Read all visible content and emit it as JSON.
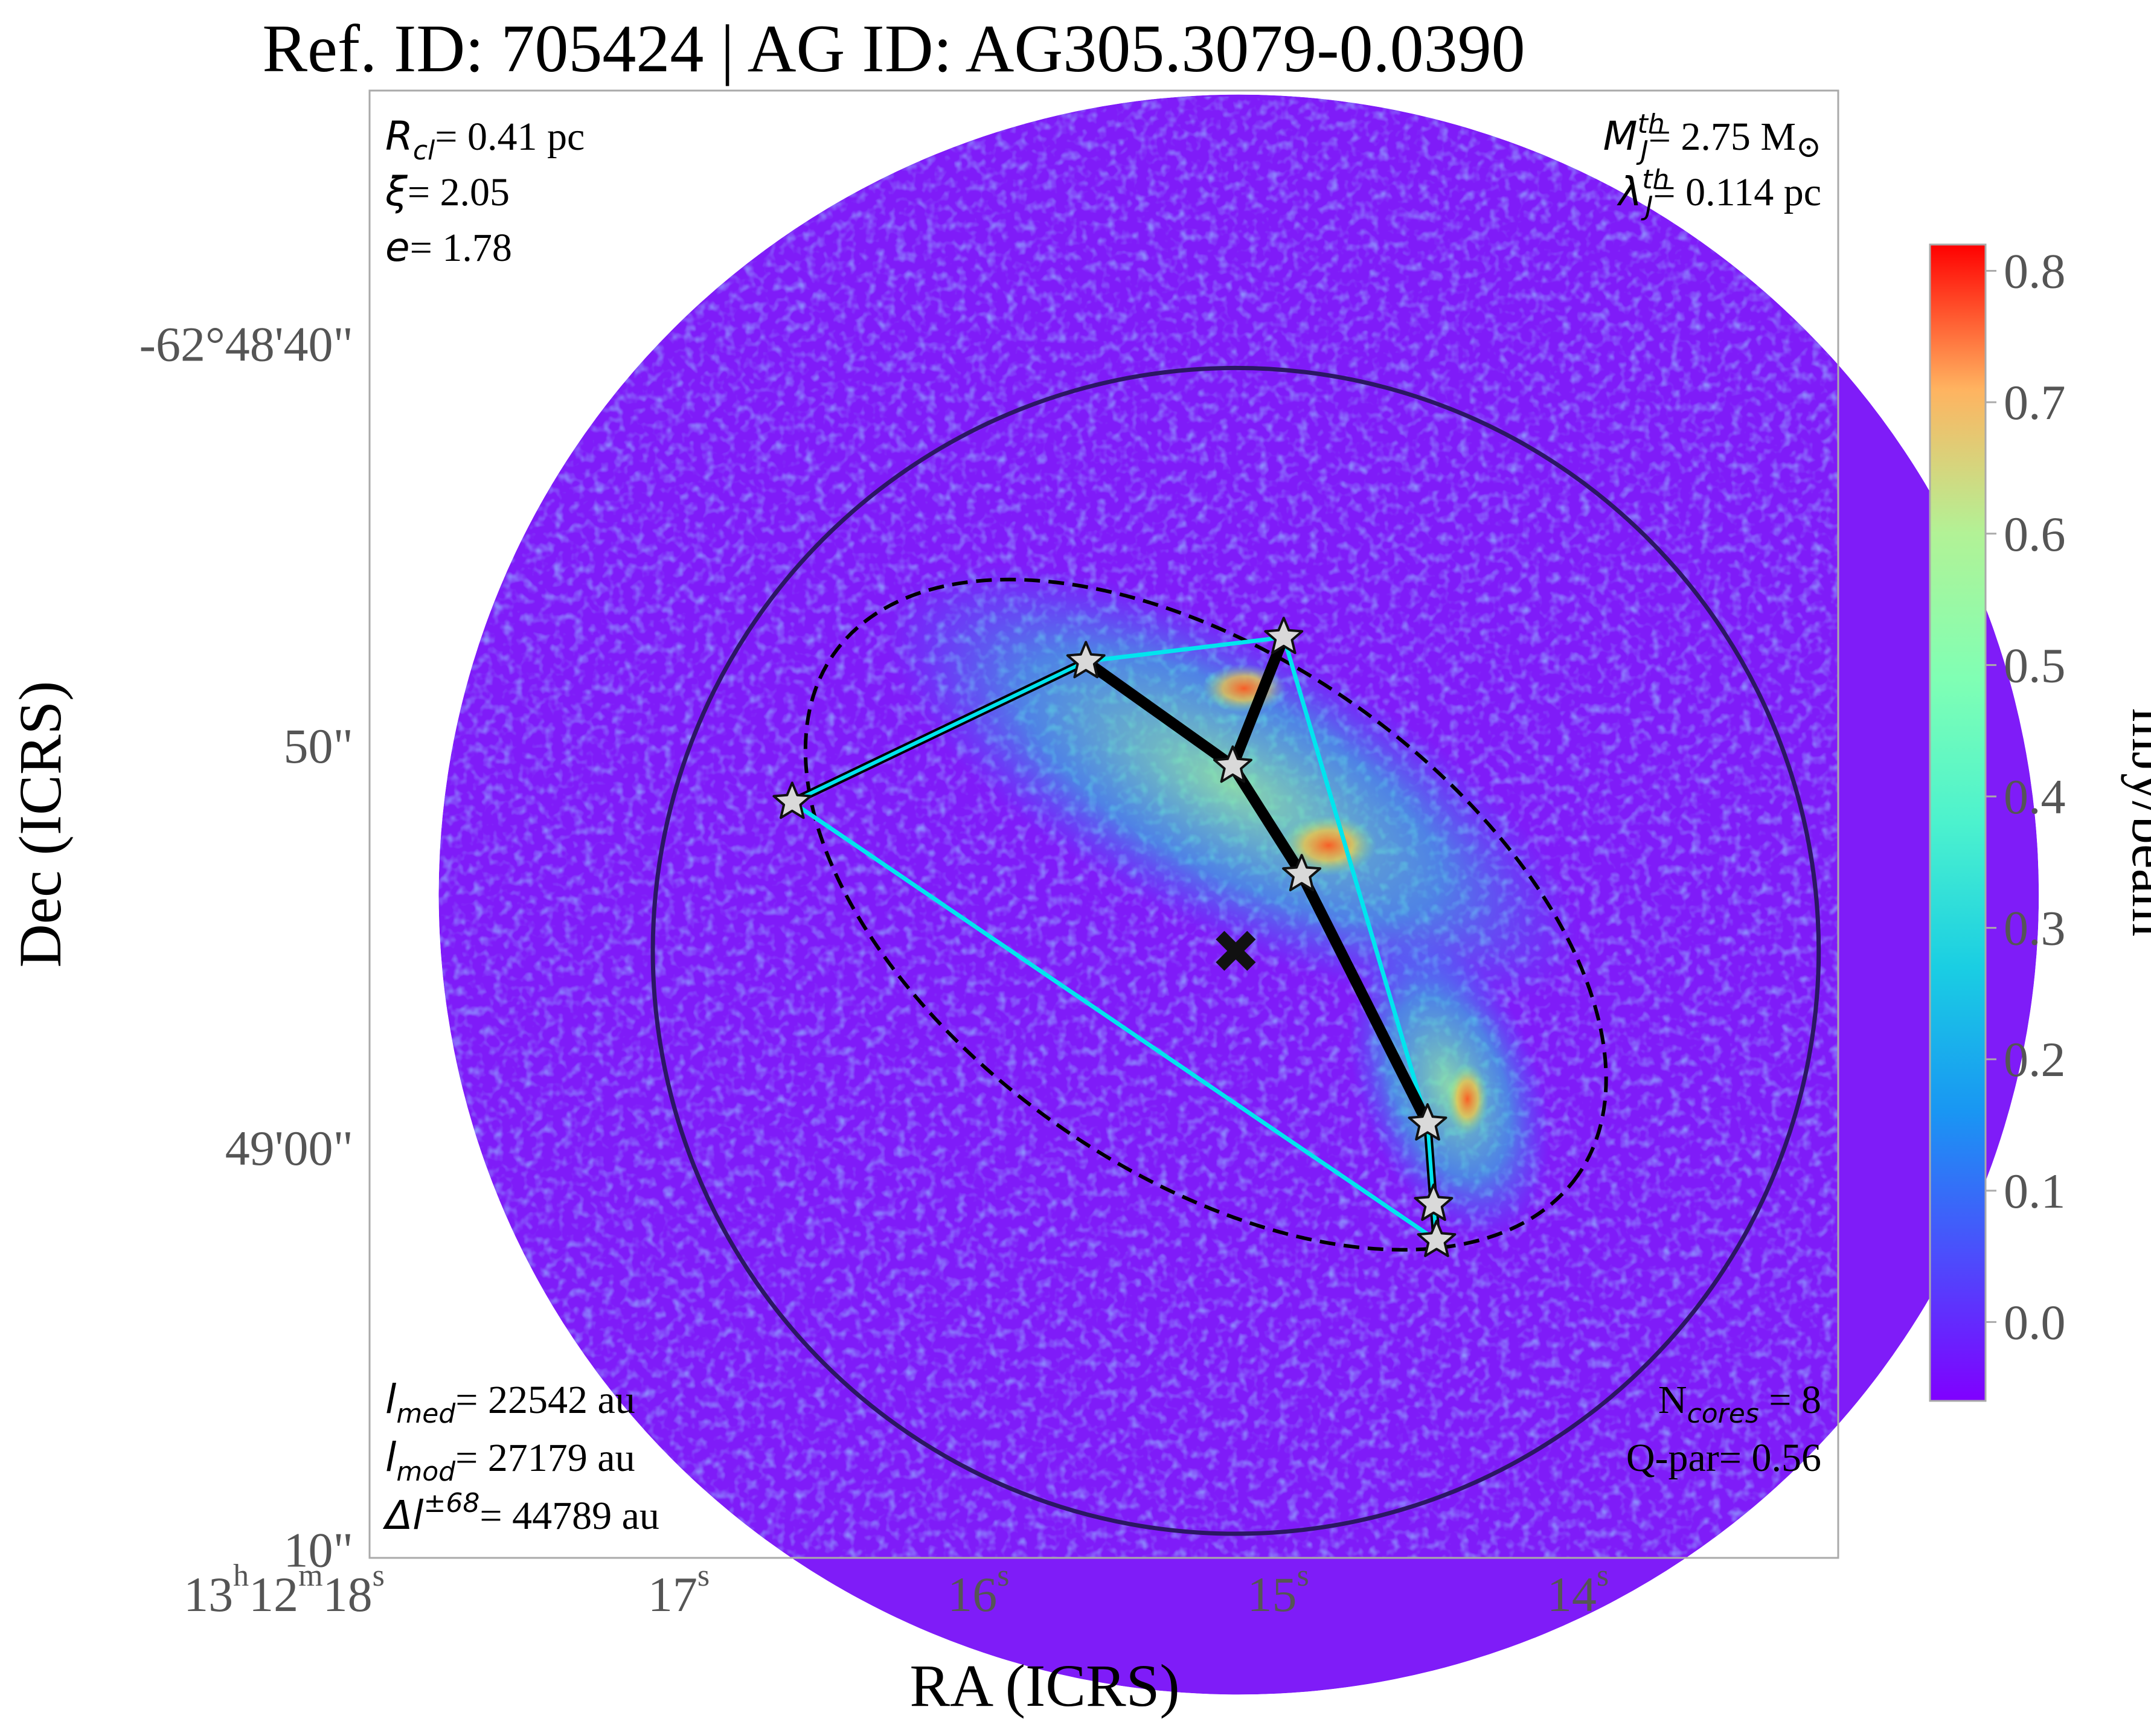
{
  "chart_data": {
    "type": "heatmap",
    "title": "Ref. ID: 705424 | AG ID: AG305.3079-0.0390",
    "xlabel": "RA (ICRS)",
    "ylabel": "Dec (ICRS)",
    "x_ticks": [
      {
        "h": "13",
        "m": "12",
        "s": "18",
        "ra_seconds": 18
      },
      {
        "s": "17",
        "ra_seconds": 17
      },
      {
        "s": "16",
        "ra_seconds": 16
      },
      {
        "s": "15",
        "ra_seconds": 15
      },
      {
        "s": "14",
        "ra_seconds": 14
      }
    ],
    "y_ticks": [
      {
        "label": "-62°48'40\"",
        "dec_arcsec": 40
      },
      {
        "label": "50\"",
        "dec_arcsec": 50
      },
      {
        "label": "49'00\"",
        "dec_arcsec": 60
      },
      {
        "label": "10\"",
        "dec_arcsec": 70
      }
    ],
    "axis_ranges": {
      "ra_seconds": [
        18.05,
        13.15
      ],
      "dec_arcsec_below_62d48m": [
        33.7,
        70.2
      ]
    },
    "colorbar": {
      "label": "mJy/beam",
      "ticks": [
        "0.0",
        "0.1",
        "0.2",
        "0.3",
        "0.4",
        "0.5",
        "0.6",
        "0.7",
        "0.8"
      ],
      "range": [
        -0.06,
        0.82
      ],
      "colormap": "rainbow"
    },
    "annotations": {
      "top_left": [
        {
          "sym": "R",
          "sub": "cl",
          "text": "= 0.41 pc"
        },
        {
          "sym": "ξ",
          "text": "= 2.05"
        },
        {
          "sym": "e",
          "text": "= 1.78"
        }
      ],
      "top_right": [
        {
          "sym": "M",
          "sub": "J",
          "sup": "th",
          "text": "= 2.75 M",
          "sun": "⊙"
        },
        {
          "sym": "λ",
          "sub": "J",
          "sup": "th",
          "text": "= 0.114 pc"
        }
      ],
      "bottom_left": [
        {
          "sym": "l",
          "sub": "med",
          "text": "= 22542 au"
        },
        {
          "sym": "l",
          "sub": "mod",
          "text": "= 27179 au"
        },
        {
          "sym": "Δl",
          "sup": "±68",
          "text": "= 44789 au"
        }
      ],
      "bottom_right": [
        {
          "pre": "N",
          "sub": "cores",
          "text": " = 8"
        },
        {
          "pre": "Q-par",
          "text": "= 0.56"
        }
      ]
    },
    "cores": [
      {
        "id": 1,
        "ra_s": 16.64,
        "dec_as": 51.4
      },
      {
        "id": 2,
        "ra_s": 15.66,
        "dec_as": 47.9
      },
      {
        "id": 3,
        "ra_s": 15.0,
        "dec_as": 47.3
      },
      {
        "id": 4,
        "ra_s": 15.17,
        "dec_as": 50.5
      },
      {
        "id": 5,
        "ra_s": 14.94,
        "dec_as": 53.2
      },
      {
        "id": 6,
        "ra_s": 14.52,
        "dec_as": 59.4
      },
      {
        "id": 7,
        "ra_s": 14.5,
        "dec_as": 61.4
      },
      {
        "id": 8,
        "ra_s": 14.49,
        "dec_as": 62.3
      }
    ],
    "mst_edges_thick": [
      [
        2,
        4
      ],
      [
        3,
        4
      ],
      [
        4,
        5
      ],
      [
        5,
        6
      ]
    ],
    "mst_edges_thin": [
      [
        1,
        2
      ],
      [
        6,
        7
      ],
      [
        7,
        8
      ]
    ],
    "hull_edges": [
      [
        1,
        2
      ],
      [
        2,
        3
      ],
      [
        3,
        6
      ],
      [
        6,
        7
      ],
      [
        7,
        8
      ],
      [
        8,
        1
      ]
    ],
    "centroid": {
      "ra_s": 15.16,
      "dec_as": 55.1
    },
    "ellipse": {
      "ra_s": 15.26,
      "dec_as": 54.2,
      "a_as": 11.3,
      "b_as": 6.4,
      "pa_deg": 35
    },
    "circle": {
      "ra_s": 15.16,
      "dec_as": 55.1,
      "r_as": 14.5
    },
    "field_circle": {
      "ra_s": 15.15,
      "dec_as": 53.7,
      "r_as": 19.9
    },
    "colors": {
      "hull": "#00e5ee",
      "mst": "#000000",
      "circle": "#2b1762",
      "star_fill": "#d9d9d9",
      "frame": "#aaaaaa",
      "tick_label": "#555555"
    }
  }
}
